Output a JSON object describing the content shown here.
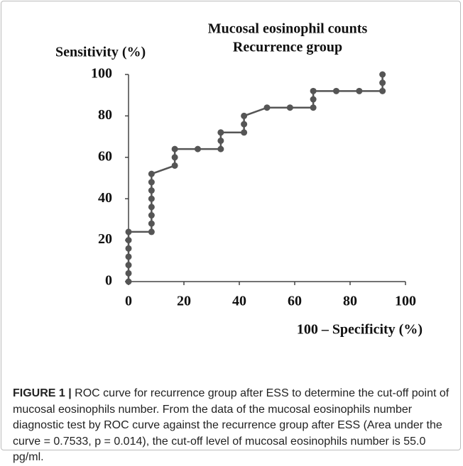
{
  "chart_data": {
    "type": "line",
    "title_lines": [
      "Mucosal eosinophil counts",
      "Recurrence group"
    ],
    "ylabel": "Sensitivity (%)",
    "xlabel": "100 – Specificity (%)",
    "x": [
      0,
      0,
      0,
      0,
      0,
      0,
      0,
      8.3,
      8.3,
      8.3,
      8.3,
      8.3,
      8.3,
      8.3,
      8.3,
      16.7,
      16.7,
      16.7,
      25,
      33.3,
      33.3,
      33.3,
      41.7,
      41.7,
      41.7,
      50,
      58.3,
      66.7,
      66.7,
      66.7,
      75,
      83.3,
      91.7,
      91.7,
      91.7
    ],
    "series": [
      {
        "color": "#555555",
        "values": [
          0,
          4,
          8,
          12,
          16,
          20,
          24,
          24,
          28,
          32,
          36,
          40,
          44,
          48,
          52,
          56,
          60,
          64,
          64,
          64,
          68,
          72,
          72,
          76,
          80,
          84,
          84,
          84,
          88,
          92,
          92,
          92,
          92,
          96,
          100
        ]
      }
    ],
    "xlim": [
      0,
      100
    ],
    "xticks": [
      0,
      20,
      40,
      60,
      80,
      100
    ],
    "ylim": [
      0,
      100
    ],
    "yticks": [
      0,
      20,
      40,
      60,
      80,
      100
    ],
    "grid": false
  },
  "caption": {
    "label": "FIGURE 1 |",
    "text": "ROC curve for recurrence group after ESS to determine the cut-off point of mucosal eosinophils number. From the data of the mucosal eosinophils number diagnostic test by ROC curve against the recurrence group after ESS (Area under the curve = 0.7533, p = 0.014), the cut-off level of mucosal eosinophils number is 55.0 pg/ml."
  }
}
